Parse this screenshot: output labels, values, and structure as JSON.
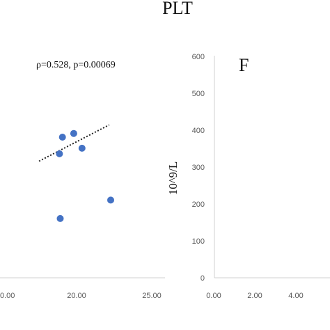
{
  "page_title": "PLT",
  "chart_data": [
    {
      "type": "scatter",
      "annotation": "ρ=0.528, p=0.00069",
      "xlim": [
        5,
        25
      ],
      "ylim": [
        0,
        600
      ],
      "x_ticks": [
        "0.00",
        "20.00",
        "25.00"
      ],
      "points": [
        {
          "x": 13.1,
          "y": 380
        },
        {
          "x": 14.6,
          "y": 390
        },
        {
          "x": 15.7,
          "y": 350
        },
        {
          "x": 12.7,
          "y": 335
        },
        {
          "x": 12.8,
          "y": 160
        },
        {
          "x": 19.5,
          "y": 210
        }
      ],
      "trendline": {
        "x": [
          10.0,
          19.3
        ],
        "y": [
          315,
          413
        ]
      },
      "marker_color": "#4472c4"
    },
    {
      "type": "scatter",
      "panel_label": "F",
      "ylabel": "10^9/L",
      "xlim": [
        0,
        6
      ],
      "ylim": [
        0,
        600
      ],
      "y_ticks": [
        "0",
        "100",
        "200",
        "300",
        "400",
        "500",
        "600"
      ],
      "x_ticks": [
        "0.00",
        "2.00",
        "4.00"
      ],
      "points": []
    }
  ]
}
